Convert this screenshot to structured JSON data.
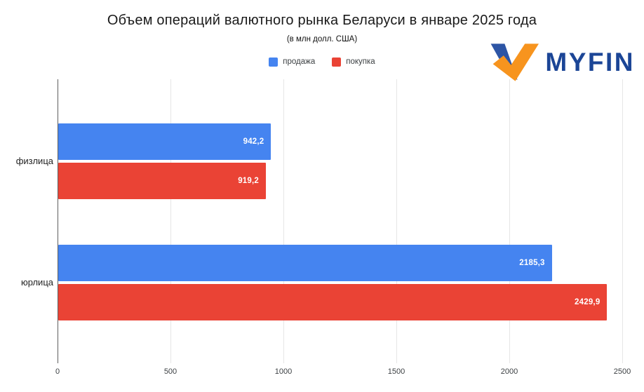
{
  "brand": {
    "name": "MYFIN",
    "text_color": "#1b4596",
    "mark_blue": "#2d55a5",
    "mark_orange": "#f7941e"
  },
  "chart_data": {
    "type": "bar",
    "orientation": "horizontal",
    "title": "Объем операций валютного рынка Беларуси в январе 2025 года",
    "subtitle": "(в млн долл. США)",
    "categories": [
      "физлица",
      "юрлица"
    ],
    "series": [
      {
        "name": "продажа",
        "color": "#4584f0",
        "values": [
          942.2,
          2185.3
        ],
        "value_labels": [
          "942,2",
          "2185,3"
        ]
      },
      {
        "name": "покупка",
        "color": "#ea4335",
        "values": [
          919.2,
          2429.9
        ],
        "value_labels": [
          "919,2",
          "2429,9"
        ]
      }
    ],
    "x_ticks": [
      "0",
      "500",
      "1000",
      "1500",
      "2000",
      "2500"
    ],
    "xlim": [
      0,
      2500
    ],
    "grid": "vertical-only",
    "legend_position": "top-center",
    "value_label_color": "#ffffff",
    "gridline_color": "#e6e6e6",
    "axis_line_color": "#5f5f5f",
    "background": "#ffffff"
  }
}
